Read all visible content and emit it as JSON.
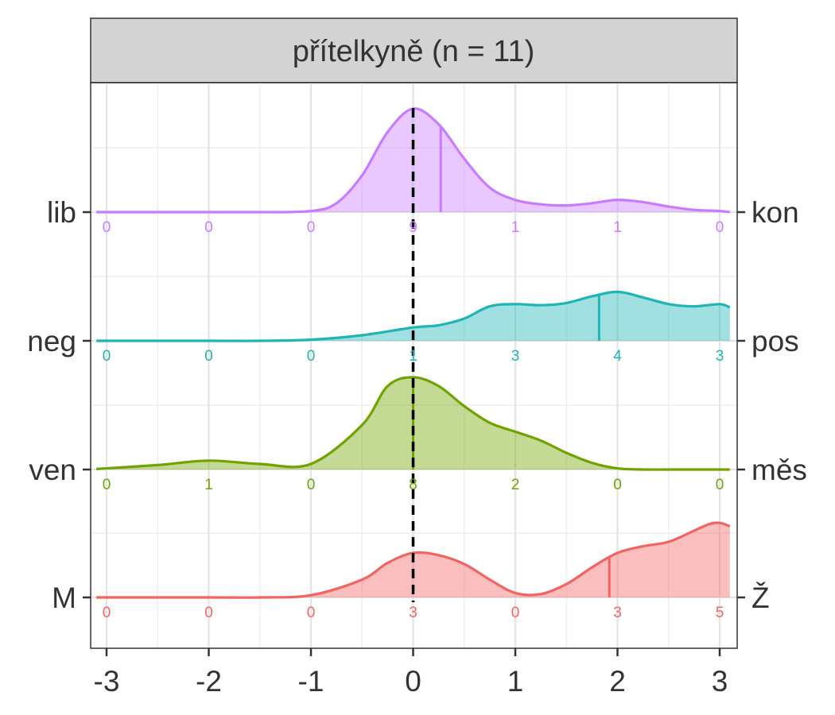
{
  "chart_data": {
    "type": "area",
    "panel_title": "přítelkyně (n = 11)",
    "x_ticks": [
      -3,
      -2,
      -1,
      0,
      1,
      2,
      3
    ],
    "x_tick_labels": [
      "-3",
      "-2",
      "-1",
      "0",
      "1",
      "2",
      "3"
    ],
    "xlim": [
      -3.1,
      3.1
    ],
    "reference_line_x": 0,
    "grid": true,
    "count_positions": [
      -3,
      -2,
      -1,
      0,
      1,
      2,
      3
    ],
    "rows": [
      {
        "left_label": "lib",
        "right_label": "kon",
        "color": "#C77CFF",
        "counts": [
          0,
          0,
          0,
          9,
          1,
          1,
          0
        ],
        "mean_line_x": 0.27,
        "density_x": [
          -3.1,
          -2.5,
          -2,
          -1.5,
          -1,
          -0.75,
          -0.5,
          -0.25,
          0,
          0.25,
          0.5,
          0.75,
          1,
          1.25,
          1.5,
          1.75,
          2,
          2.25,
          2.5,
          2.75,
          3,
          3.1
        ],
        "density_y": [
          0,
          0,
          0,
          0,
          0.01,
          0.08,
          0.33,
          0.72,
          0.93,
          0.79,
          0.48,
          0.22,
          0.11,
          0.07,
          0.06,
          0.08,
          0.11,
          0.09,
          0.05,
          0.02,
          0.01,
          0
        ]
      },
      {
        "left_label": "neg",
        "right_label": "pos",
        "color": "#1FB5B5",
        "counts": [
          0,
          0,
          0,
          1,
          3,
          4,
          3
        ],
        "mean_line_x": 1.82,
        "density_x": [
          -3.1,
          -2,
          -1.5,
          -1,
          -0.5,
          0,
          0.25,
          0.5,
          0.75,
          1,
          1.25,
          1.5,
          1.75,
          2,
          2.25,
          2.5,
          2.75,
          3,
          3.1
        ],
        "density_y": [
          0,
          0,
          0,
          0.01,
          0.05,
          0.12,
          0.14,
          0.2,
          0.31,
          0.33,
          0.32,
          0.34,
          0.4,
          0.44,
          0.39,
          0.33,
          0.31,
          0.33,
          0.3
        ]
      },
      {
        "left_label": "ven",
        "right_label": "měs",
        "color": "#6FA400",
        "counts": [
          0,
          1,
          0,
          8,
          2,
          0,
          0
        ],
        "mean_line_x": 0.0,
        "density_x": [
          -3.1,
          -2.5,
          -2,
          -1.5,
          -1,
          -0.5,
          -0.25,
          0,
          0.25,
          0.5,
          0.75,
          1,
          1.25,
          1.5,
          1.75,
          2,
          2.25,
          2.5,
          3,
          3.1
        ],
        "density_y": [
          0.005,
          0.04,
          0.08,
          0.05,
          0.05,
          0.4,
          0.75,
          0.83,
          0.75,
          0.57,
          0.42,
          0.34,
          0.26,
          0.15,
          0.06,
          0.01,
          0,
          0,
          0,
          0
        ]
      },
      {
        "left_label": "M",
        "right_label": "Ž",
        "color": "#F06462",
        "counts": [
          0,
          0,
          0,
          3,
          0,
          3,
          5
        ],
        "mean_line_x": 1.92,
        "density_x": [
          -3.1,
          -2,
          -1.5,
          -1,
          -0.5,
          -0.25,
          0,
          0.25,
          0.5,
          0.75,
          1,
          1.25,
          1.5,
          1.75,
          2,
          2.25,
          2.5,
          2.75,
          2.9,
          3,
          3.1
        ],
        "density_y": [
          0,
          0,
          0,
          0.02,
          0.16,
          0.31,
          0.4,
          0.38,
          0.3,
          0.16,
          0.04,
          0.03,
          0.12,
          0.27,
          0.4,
          0.46,
          0.5,
          0.6,
          0.66,
          0.67,
          0.64
        ]
      }
    ]
  }
}
